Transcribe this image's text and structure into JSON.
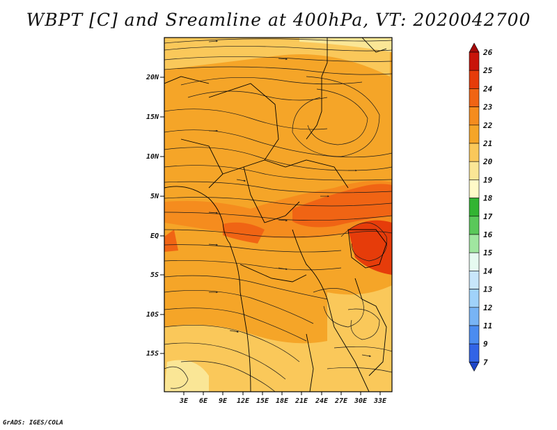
{
  "title": "WBPT [C] and Sreamline at 400hPa, VT: 2020042700",
  "footer": "GrADS: IGES/COLA",
  "map": {
    "lat_ticks": [
      "20N",
      "15N",
      "10N",
      "5N",
      "EQ",
      "5S",
      "10S",
      "15S"
    ],
    "lon_ticks": [
      "3E",
      "6E",
      "9E",
      "12E",
      "15E",
      "18E",
      "21E",
      "24E",
      "27E",
      "30E",
      "33E"
    ]
  },
  "colorbar": {
    "labels": [
      "26",
      "25",
      "24",
      "23",
      "22",
      "21",
      "20",
      "19",
      "18",
      "17",
      "16",
      "15",
      "14",
      "13",
      "12",
      "11",
      "9",
      "7"
    ],
    "colors": [
      "#a50a0a",
      "#c8140a",
      "#e63c0a",
      "#f06414",
      "#f58c1e",
      "#f5a528",
      "#fac85a",
      "#fae696",
      "#fffac8",
      "#32b432",
      "#5ac85a",
      "#a0e6a0",
      "#e6faf0",
      "#c8e6fa",
      "#a0d2fa",
      "#78b4f5",
      "#4b8cf0",
      "#3264e6",
      "#1e46c8"
    ]
  },
  "colors": {
    "streamline": "#1a1a1a",
    "border": "#000000",
    "background": "#ffffff"
  }
}
